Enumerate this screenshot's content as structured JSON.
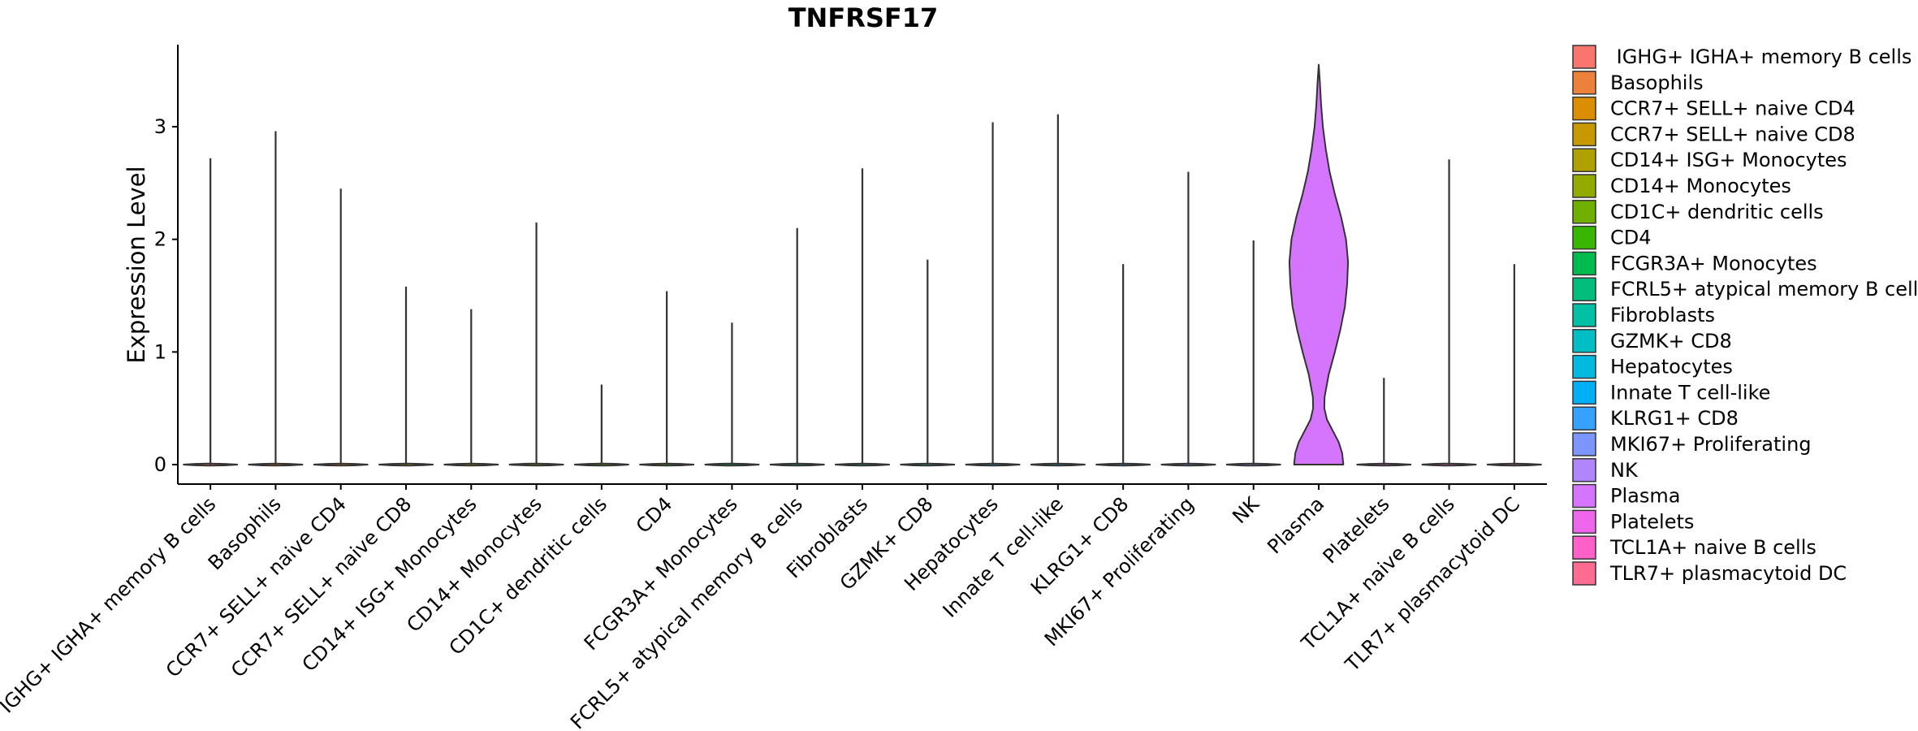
{
  "chart_data": {
    "type": "violin",
    "title": "TNFRSF17",
    "xlabel": "",
    "ylabel": "Expression Level",
    "ylim": [
      -0.18,
      3.75
    ],
    "yticks": [
      0,
      1,
      2,
      3
    ],
    "categories": [
      "IGHG+ IGHA+ memory B cells",
      "Basophils",
      "CCR7+ SELL+ naive CD4",
      "CCR7+ SELL+ naive CD8",
      "CD14+ ISG+ Monocytes",
      "CD14+ Monocytes",
      "CD1C+ dendritic cells",
      "CD4",
      "FCGR3A+ Monocytes",
      "FCRL5+ atypical memory B cells",
      "Fibroblasts",
      "GZMK+ CD8",
      "Hepatocytes",
      "Innate T cell-like",
      "KLRG1+ CD8",
      "MKI67+ Proliferating",
      "NK",
      "Plasma",
      "Platelets",
      "TCL1A+ naive B cells",
      "TLR7+ plasmacytoid DC"
    ],
    "legend_labels": [
      " IGHG+ IGHA+ memory B cells",
      "Basophils",
      "CCR7+ SELL+ naive CD4",
      "CCR7+ SELL+ naive CD8",
      "CD14+ ISG+ Monocytes",
      "CD14+ Monocytes",
      "CD1C+ dendritic cells",
      "CD4",
      "FCGR3A+ Monocytes",
      "FCRL5+ atypical memory B cells",
      "Fibroblasts",
      "GZMK+ CD8",
      "Hepatocytes",
      "Innate T cell-like",
      "KLRG1+ CD8",
      "MKI67+ Proliferating",
      "NK",
      "Plasma",
      "Platelets",
      "TCL1A+ naive B cells",
      "TLR7+ plasmacytoid DC"
    ],
    "max_values": [
      2.72,
      2.96,
      2.45,
      1.58,
      1.38,
      2.15,
      0.71,
      1.54,
      1.26,
      2.1,
      2.63,
      1.82,
      3.04,
      3.11,
      1.78,
      2.6,
      1.99,
      3.55,
      0.77,
      2.71,
      1.78
    ],
    "plasma_density": {
      "y": [
        0.0,
        0.1,
        0.2,
        0.3,
        0.4,
        0.5,
        0.6,
        0.8,
        1.0,
        1.2,
        1.4,
        1.6,
        1.8,
        2.0,
        2.2,
        2.4,
        2.6,
        2.8,
        3.0,
        3.2,
        3.4,
        3.55
      ],
      "width": [
        0.84,
        0.8,
        0.68,
        0.48,
        0.28,
        0.19,
        0.2,
        0.34,
        0.55,
        0.74,
        0.89,
        0.97,
        1.0,
        0.93,
        0.76,
        0.55,
        0.37,
        0.24,
        0.14,
        0.08,
        0.04,
        0.0
      ]
    },
    "colors": [
      "#F8766D",
      "#EC8239",
      "#DB8E00",
      "#C79800",
      "#AFA100",
      "#93AA00",
      "#6FB000",
      "#39B600",
      "#00BB4E",
      "#00BF7D",
      "#00C1A3",
      "#00BFC4",
      "#00BAE0",
      "#00B0F6",
      "#35A2FF",
      "#7C96FF",
      "#B186FF",
      "#D575FE",
      "#EE67EB",
      "#FF61C9",
      "#FF6C91"
    ],
    "legend_position": "right",
    "grid": false
  }
}
